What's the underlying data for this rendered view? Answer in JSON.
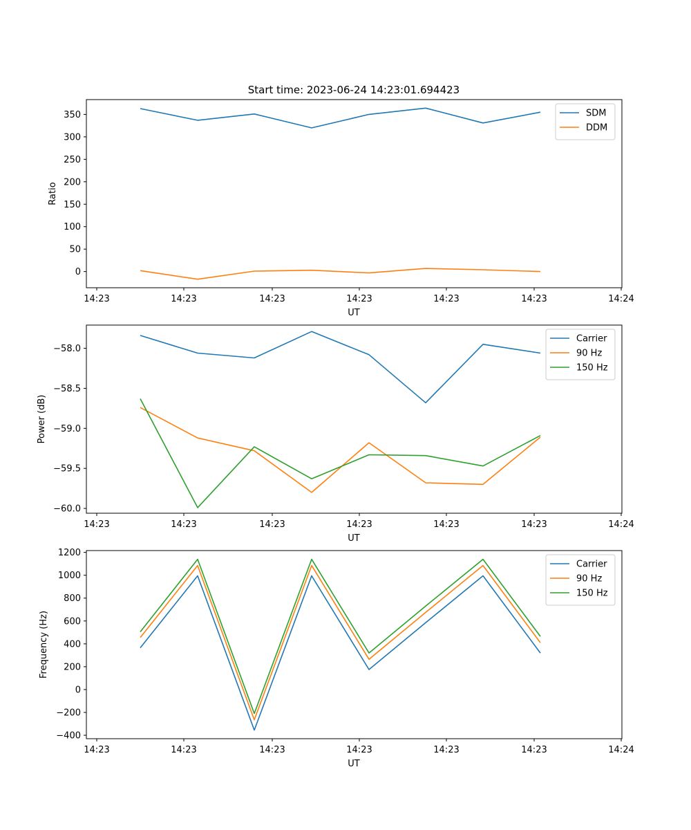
{
  "figure_title": "Start time: 2023-06-24 14:23:01.694423",
  "colors": {
    "blue": "#1f77b4",
    "orange": "#ff7f0e",
    "green": "#2ca02c"
  },
  "chart_data": [
    {
      "type": "line",
      "title": "Start time: 2023-06-24 14:23:01.694423",
      "xlabel": "UT",
      "ylabel": "Ratio",
      "x_tick_labels": [
        "14:23",
        "14:23",
        "14:23",
        "14:23",
        "14:23",
        "14:23",
        "14:24"
      ],
      "y_ticks": [
        0,
        50,
        100,
        150,
        200,
        250,
        300,
        350
      ],
      "y_tick_labels": [
        "0",
        "50",
        "100",
        "150",
        "200",
        "250",
        "300",
        "350"
      ],
      "ylim": [
        -36,
        383
      ],
      "grid": false,
      "legend_position": "top-right",
      "x_index": [
        0,
        1,
        2,
        3,
        4,
        5,
        6,
        7
      ],
      "series": [
        {
          "name": "SDM",
          "color": "#1f77b4",
          "values": [
            363,
            337,
            351,
            320,
            350,
            364,
            331,
            355
          ]
        },
        {
          "name": "DDM",
          "color": "#ff7f0e",
          "values": [
            2,
            -17,
            1,
            3,
            -3,
            7,
            4,
            0
          ]
        }
      ]
    },
    {
      "type": "line",
      "title": "",
      "xlabel": "UT",
      "ylabel": "Power (dB)",
      "x_tick_labels": [
        "14:23",
        "14:23",
        "14:23",
        "14:23",
        "14:23",
        "14:23",
        "14:24"
      ],
      "y_ticks": [
        -60.0,
        -59.5,
        -59.0,
        -58.5,
        -58.0
      ],
      "y_tick_labels": [
        "−60.0",
        "−59.5",
        "−59.0",
        "−58.5",
        "−58.0"
      ],
      "ylim": [
        -60.06,
        -57.71
      ],
      "grid": false,
      "legend_position": "top-right",
      "x_index": [
        0,
        1,
        2,
        3,
        4,
        5,
        6,
        7
      ],
      "series": [
        {
          "name": "Carrier",
          "color": "#1f77b4",
          "values": [
            -57.84,
            -58.06,
            -58.12,
            -57.79,
            -58.08,
            -58.68,
            -57.95,
            -58.06
          ]
        },
        {
          "name": "90 Hz",
          "color": "#ff7f0e",
          "values": [
            -58.74,
            -59.12,
            -59.28,
            -59.8,
            -59.18,
            -59.68,
            -59.7,
            -59.11
          ]
        },
        {
          "name": "150 Hz",
          "color": "#2ca02c",
          "values": [
            -58.63,
            -59.99,
            -59.23,
            -59.63,
            -59.33,
            -59.34,
            -59.47,
            -59.09
          ]
        }
      ]
    },
    {
      "type": "line",
      "title": "",
      "xlabel": "UT",
      "ylabel": "Frequency (Hz)",
      "x_tick_labels": [
        "14:23",
        "14:23",
        "14:23",
        "14:23",
        "14:23",
        "14:23",
        "14:24"
      ],
      "y_ticks": [
        -400,
        -200,
        0,
        200,
        400,
        600,
        800,
        1000,
        1200
      ],
      "y_tick_labels": [
        "−400",
        "−200",
        "0",
        "200",
        "400",
        "600",
        "800",
        "1000",
        "1200"
      ],
      "ylim": [
        -430,
        1216
      ],
      "grid": false,
      "legend_position": "top-right",
      "x_index": [
        0,
        1,
        2,
        3,
        4,
        5,
        6,
        7
      ],
      "series": [
        {
          "name": "Carrier",
          "color": "#1f77b4",
          "values": [
            365,
            995,
            -355,
            995,
            175,
            585,
            995,
            320
          ]
        },
        {
          "name": "90 Hz",
          "color": "#ff7f0e",
          "values": [
            455,
            1085,
            -265,
            1085,
            265,
            675,
            1085,
            410
          ]
        },
        {
          "name": "150 Hz",
          "color": "#2ca02c",
          "values": [
            505,
            1140,
            -210,
            1140,
            320,
            730,
            1140,
            465
          ]
        }
      ]
    }
  ]
}
